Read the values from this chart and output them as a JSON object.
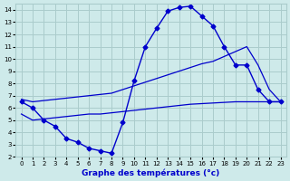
{
  "xlabel": "Graphe des températures (°c)",
  "bg_color": "#ceeaea",
  "grid_color": "#aacccc",
  "line_color": "#0000cc",
  "marker": "D",
  "marker_size": 2.5,
  "xlim": [
    -0.5,
    23.5
  ],
  "ylim": [
    2,
    14.5
  ],
  "xticks": [
    0,
    1,
    2,
    3,
    4,
    5,
    6,
    7,
    8,
    9,
    10,
    11,
    12,
    13,
    14,
    15,
    16,
    17,
    18,
    19,
    20,
    21,
    22,
    23
  ],
  "yticks": [
    2,
    3,
    4,
    5,
    6,
    7,
    8,
    9,
    10,
    11,
    12,
    13,
    14
  ],
  "line1_x": [
    0,
    1,
    2,
    3,
    4,
    5,
    6,
    7,
    8,
    9,
    10,
    11,
    12,
    13,
    14,
    15,
    16,
    17,
    18,
    19,
    20,
    21,
    22,
    23
  ],
  "line1_y": [
    6.5,
    6.0,
    5.0,
    4.5,
    3.5,
    3.2,
    2.7,
    2.5,
    2.3,
    4.8,
    8.2,
    11.0,
    12.5,
    13.9,
    14.2,
    14.3,
    13.5,
    12.7,
    11.0,
    9.5,
    9.5,
    7.5,
    6.5,
    6.5
  ],
  "line3_x": [
    0,
    1,
    23
  ],
  "line3_y": [
    5.5,
    5.0,
    6.5
  ],
  "line2_full_x": [
    0,
    1,
    2,
    3,
    4,
    5,
    6,
    7,
    8,
    9,
    10,
    11,
    12,
    13,
    14,
    15,
    16,
    17,
    18,
    19,
    20,
    21,
    22,
    23
  ],
  "line2_full_y": [
    6.7,
    6.5,
    6.6,
    6.7,
    6.8,
    6.9,
    7.0,
    7.1,
    7.2,
    7.5,
    7.8,
    8.1,
    8.4,
    8.7,
    9.0,
    9.3,
    9.6,
    9.8,
    10.2,
    10.6,
    11.0,
    9.5,
    7.5,
    6.5
  ],
  "line3_full_x": [
    0,
    1,
    2,
    3,
    4,
    5,
    6,
    7,
    8,
    9,
    10,
    11,
    12,
    13,
    14,
    15,
    16,
    17,
    18,
    19,
    20,
    21,
    22,
    23
  ],
  "line3_full_y": [
    5.5,
    5.0,
    5.1,
    5.2,
    5.3,
    5.4,
    5.5,
    5.5,
    5.6,
    5.7,
    5.8,
    5.9,
    6.0,
    6.1,
    6.2,
    6.3,
    6.35,
    6.4,
    6.45,
    6.5,
    6.5,
    6.5,
    6.5,
    6.5
  ]
}
